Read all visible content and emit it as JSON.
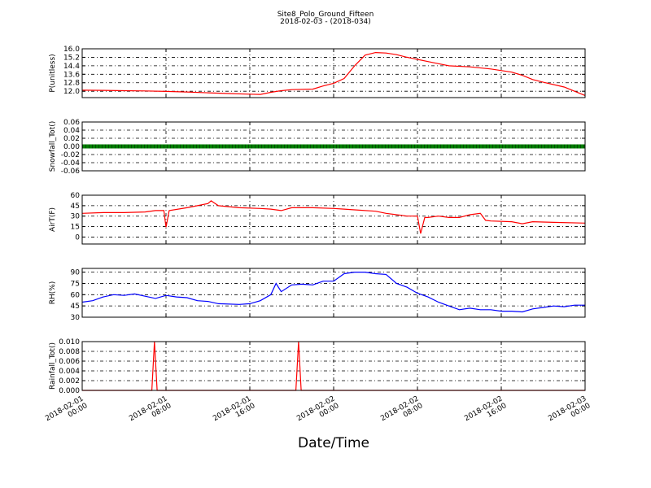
{
  "chart_data": {
    "title": "Site8_Polo_Ground_Fifteen",
    "subtitle": "2018-02-03 - (2018-034)",
    "xlabel": "Date/Time",
    "x_ticks": [
      {
        "t": 0,
        "l1": "2018-02-01",
        "l2": "00:00"
      },
      {
        "t": 8,
        "l1": "2018-02-01",
        "l2": "08:00"
      },
      {
        "t": 16,
        "l1": "2018-02-01",
        "l2": "16:00"
      },
      {
        "t": 24,
        "l1": "2018-02-02",
        "l2": "00:00"
      },
      {
        "t": 32,
        "l1": "2018-02-02",
        "l2": "08:00"
      },
      {
        "t": 40,
        "l1": "2018-02-02",
        "l2": "16:00"
      },
      {
        "t": 48,
        "l1": "2018-02-03",
        "l2": "00:00"
      }
    ],
    "xlim": [
      0,
      48
    ],
    "panels": [
      {
        "type": "line",
        "ylabel": "P(unitless)",
        "ylim": [
          11.4,
          16.0
        ],
        "yticks": [
          "12.0",
          "12.8",
          "13.6",
          "14.4",
          "15.2",
          "16.0"
        ],
        "ytick_values": [
          12.0,
          12.8,
          13.6,
          14.4,
          15.2,
          16.0
        ],
        "color": "#ff0000",
        "points": [
          [
            0,
            12.1
          ],
          [
            2,
            12.08
          ],
          [
            4,
            12.05
          ],
          [
            6,
            12.03
          ],
          [
            8,
            11.98
          ],
          [
            10,
            11.93
          ],
          [
            12,
            11.85
          ],
          [
            14,
            11.78
          ],
          [
            16,
            11.72
          ],
          [
            17,
            11.7
          ],
          [
            18,
            11.9
          ],
          [
            19,
            12.05
          ],
          [
            20,
            12.15
          ],
          [
            22,
            12.2
          ],
          [
            23,
            12.5
          ],
          [
            24,
            12.75
          ],
          [
            25,
            13.2
          ],
          [
            26,
            14.4
          ],
          [
            27,
            15.4
          ],
          [
            28,
            15.65
          ],
          [
            29,
            15.6
          ],
          [
            30,
            15.45
          ],
          [
            31,
            15.2
          ],
          [
            32,
            15.0
          ],
          [
            33,
            14.8
          ],
          [
            34,
            14.6
          ],
          [
            35,
            14.4
          ],
          [
            37,
            14.3
          ],
          [
            39,
            14.1
          ],
          [
            41,
            13.8
          ],
          [
            42,
            13.5
          ],
          [
            43,
            13.1
          ],
          [
            44,
            12.85
          ],
          [
            46,
            12.4
          ],
          [
            47,
            12.0
          ],
          [
            48,
            11.6
          ]
        ]
      },
      {
        "type": "line",
        "ylabel": "Snowfall_Tot()",
        "ylim": [
          -0.06,
          0.06
        ],
        "yticks": [
          "-0.06",
          "-0.04",
          "-0.02",
          "0.00",
          "0.02",
          "0.04",
          "0.06"
        ],
        "ytick_values": [
          -0.06,
          -0.04,
          -0.02,
          0.0,
          0.02,
          0.04,
          0.06
        ],
        "color": "#008000",
        "marker": true,
        "points": [
          [
            0,
            0
          ],
          [
            48,
            0
          ]
        ]
      },
      {
        "type": "line",
        "ylabel": "AirT(F)",
        "ylim": [
          -10,
          60
        ],
        "yticks": [
          "0",
          "15",
          "30",
          "45",
          "60"
        ],
        "ytick_values": [
          0,
          15,
          30,
          45,
          60
        ],
        "color": "#ff0000",
        "points": [
          [
            0,
            34
          ],
          [
            2,
            35
          ],
          [
            4,
            35
          ],
          [
            6,
            36
          ],
          [
            7,
            38
          ],
          [
            7.8,
            38
          ],
          [
            8,
            14
          ],
          [
            8.3,
            38
          ],
          [
            10,
            42
          ],
          [
            11,
            45
          ],
          [
            12,
            48
          ],
          [
            12.3,
            52
          ],
          [
            13,
            45
          ],
          [
            15,
            42
          ],
          [
            17,
            41
          ],
          [
            18,
            40
          ],
          [
            19,
            38
          ],
          [
            20,
            42
          ],
          [
            22,
            42
          ],
          [
            24,
            41
          ],
          [
            25,
            40
          ],
          [
            26,
            39
          ],
          [
            28,
            37
          ],
          [
            29,
            34
          ],
          [
            30,
            32
          ],
          [
            31,
            30
          ],
          [
            32,
            30
          ],
          [
            32.3,
            5
          ],
          [
            32.7,
            28
          ],
          [
            33,
            28
          ],
          [
            34,
            30
          ],
          [
            35,
            28
          ],
          [
            36,
            28
          ],
          [
            37,
            32
          ],
          [
            38,
            34
          ],
          [
            38.5,
            24
          ],
          [
            39,
            23
          ],
          [
            41,
            22
          ],
          [
            42,
            19
          ],
          [
            43,
            22
          ],
          [
            45,
            21
          ],
          [
            48,
            20
          ]
        ]
      },
      {
        "type": "line",
        "ylabel": "RH(%)",
        "ylim": [
          30,
          95
        ],
        "yticks": [
          "30",
          "45",
          "60",
          "75",
          "90"
        ],
        "ytick_values": [
          30,
          45,
          60,
          75,
          90
        ],
        "color": "#0000ff",
        "points": [
          [
            0,
            50
          ],
          [
            1,
            52
          ],
          [
            2,
            57
          ],
          [
            3,
            60
          ],
          [
            4,
            59
          ],
          [
            5,
            61
          ],
          [
            6,
            58
          ],
          [
            7,
            55
          ],
          [
            8,
            59
          ],
          [
            9,
            57
          ],
          [
            10,
            56
          ],
          [
            11,
            52
          ],
          [
            12,
            51
          ],
          [
            13,
            48
          ],
          [
            15,
            47
          ],
          [
            16,
            48
          ],
          [
            17,
            52
          ],
          [
            18,
            60
          ],
          [
            18.5,
            75
          ],
          [
            19,
            64
          ],
          [
            20,
            73
          ],
          [
            21,
            74
          ],
          [
            22,
            73
          ],
          [
            23,
            78
          ],
          [
            24,
            78
          ],
          [
            25,
            88
          ],
          [
            26,
            90
          ],
          [
            27,
            90
          ],
          [
            28,
            88
          ],
          [
            29,
            87
          ],
          [
            30,
            75
          ],
          [
            31,
            70
          ],
          [
            32,
            62
          ],
          [
            33,
            57
          ],
          [
            34,
            50
          ],
          [
            35,
            45
          ],
          [
            36,
            40
          ],
          [
            37,
            42
          ],
          [
            38,
            40
          ],
          [
            39,
            40
          ],
          [
            40,
            38
          ],
          [
            41,
            38
          ],
          [
            42,
            37
          ],
          [
            43,
            41
          ],
          [
            44,
            43
          ],
          [
            45,
            45
          ],
          [
            46,
            44
          ],
          [
            47,
            46
          ],
          [
            48,
            46
          ]
        ]
      },
      {
        "type": "line",
        "ylabel": "Rainfall_Tot()",
        "ylim": [
          0,
          0.01
        ],
        "yticks": [
          "0.000",
          "0.002",
          "0.004",
          "0.006",
          "0.008",
          "0.010"
        ],
        "ytick_values": [
          0,
          0.002,
          0.004,
          0.006,
          0.008,
          0.01
        ],
        "color": "#ff0000",
        "points": [
          [
            0,
            0
          ],
          [
            6.65,
            0
          ],
          [
            6.9,
            0.01
          ],
          [
            7.15,
            0
          ],
          [
            20.4,
            0
          ],
          [
            20.65,
            0.01
          ],
          [
            20.9,
            0
          ],
          [
            48,
            0
          ]
        ]
      }
    ]
  }
}
